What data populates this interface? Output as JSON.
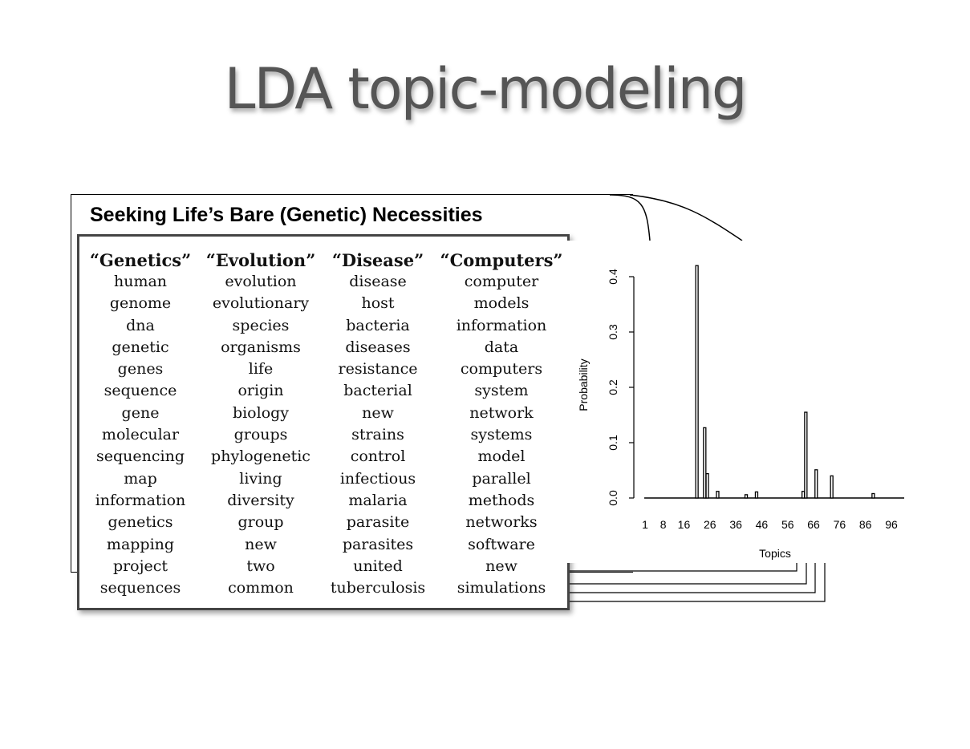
{
  "slide": {
    "title": "LDA topic-modeling"
  },
  "article": {
    "title": "Seeking Life’s Bare (Genetic) Necessities"
  },
  "topics": [
    {
      "name": "“Genetics”",
      "words": [
        "human",
        "genome",
        "dna",
        "genetic",
        "genes",
        "sequence",
        "gene",
        "molecular",
        "sequencing",
        "map",
        "information",
        "genetics",
        "mapping",
        "project",
        "sequences"
      ]
    },
    {
      "name": "“Evolution”",
      "words": [
        "evolution",
        "evolutionary",
        "species",
        "organisms",
        "life",
        "origin",
        "biology",
        "groups",
        "phylogenetic",
        "living",
        "diversity",
        "group",
        "new",
        "two",
        "common"
      ]
    },
    {
      "name": "“Disease”",
      "words": [
        "disease",
        "host",
        "bacteria",
        "diseases",
        "resistance",
        "bacterial",
        "new",
        "strains",
        "control",
        "infectious",
        "malaria",
        "parasite",
        "parasites",
        "united",
        "tuberculosis"
      ]
    },
    {
      "name": "“Computers”",
      "words": [
        "computer",
        "models",
        "information",
        "data",
        "computers",
        "system",
        "network",
        "systems",
        "model",
        "parallel",
        "methods",
        "networks",
        "software",
        "new",
        "simulations"
      ]
    }
  ],
  "chart_data": {
    "type": "bar",
    "xlabel": "Topics",
    "ylabel": "Probability",
    "xlim": [
      1,
      100
    ],
    "ylim": [
      0,
      0.4
    ],
    "x_ticks": [
      1,
      8,
      16,
      26,
      36,
      46,
      56,
      66,
      76,
      86,
      96
    ],
    "y_ticks": [
      "0.0",
      "0.1",
      "0.2",
      "0.3",
      "0.4"
    ],
    "bars": [
      {
        "topic": 21,
        "value": 0.42
      },
      {
        "topic": 24,
        "value": 0.127
      },
      {
        "topic": 25,
        "value": 0.044
      },
      {
        "topic": 29,
        "value": 0.012
      },
      {
        "topic": 40,
        "value": 0.006
      },
      {
        "topic": 44,
        "value": 0.011
      },
      {
        "topic": 62,
        "value": 0.012
      },
      {
        "topic": 63,
        "value": 0.155
      },
      {
        "topic": 67,
        "value": 0.051
      },
      {
        "topic": 73,
        "value": 0.04
      },
      {
        "topic": 89,
        "value": 0.008
      }
    ]
  }
}
